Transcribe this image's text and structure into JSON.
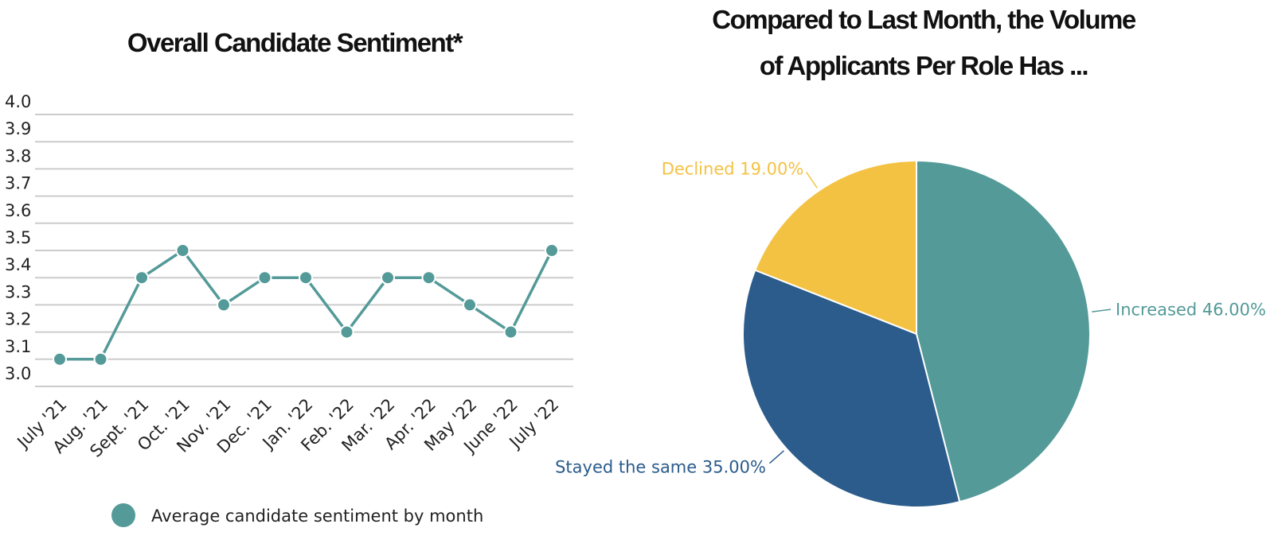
{
  "chart_data": [
    {
      "type": "line",
      "title": "Overall Candidate Sentiment*",
      "categories": [
        "July '21",
        "Aug. '21",
        "Sept. '21",
        "Oct. '21",
        "Nov. '21",
        "Dec. '21",
        "Jan. '22",
        "Feb. '22",
        "Mar. '22",
        "Apr. '22",
        "May '22",
        "June '22",
        "July '22"
      ],
      "series": [
        {
          "name": "Average candidate sentiment by month",
          "color": "#539a98",
          "values": [
            3.1,
            3.1,
            3.4,
            3.5,
            3.3,
            3.4,
            3.4,
            3.2,
            3.4,
            3.4,
            3.3,
            3.2,
            3.5
          ]
        }
      ],
      "ylim": [
        3.0,
        4.0
      ],
      "yticks": [
        {
          "value": 3.0,
          "label": "3.0"
        },
        3.1,
        3.2,
        3.3,
        3.4,
        3.5,
        3.6,
        3.7,
        3.8,
        3.9,
        {
          "value": 4.0,
          "label": "4.0"
        }
      ],
      "grid": true,
      "legend": "bottom"
    },
    {
      "type": "pie",
      "title": "Compared to Last Month, the Volume of Applicants Per Role Has ...",
      "categories": [
        "Increased",
        "Stayed the same",
        "Declined"
      ],
      "values": [
        46,
        35,
        19
      ],
      "value_labels": [
        "46.00%",
        "35.00%",
        "19.00%"
      ],
      "colors": [
        "#539a98",
        "#2b5c8c",
        "#f4c243"
      ]
    }
  ]
}
